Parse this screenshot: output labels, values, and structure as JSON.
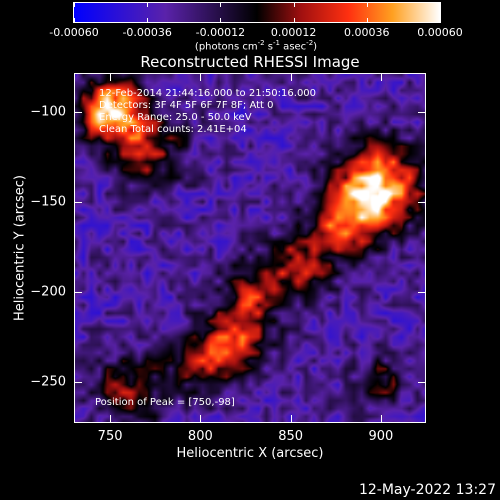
{
  "chart_data": {
    "type": "heatmap",
    "title": "Reconstructed RHESSI Image",
    "xlabel": "Heliocentric X (arcsec)",
    "ylabel": "Heliocentric Y (arcsec)",
    "xlim": [
      730,
      925
    ],
    "ylim": [
      -273,
      -78
    ],
    "x_ticks": [
      750,
      800,
      850,
      900
    ],
    "y_ticks": [
      -100,
      -150,
      -200,
      -250
    ],
    "colorbar": {
      "ticks": [
        "-0.00060",
        "-0.00036",
        "-0.00012",
        "0.00012",
        "0.00036",
        "0.00060"
      ],
      "range": [
        -0.0006,
        0.0006
      ],
      "units_prefix": "(photons cm",
      "units_exp1": "-2",
      "units_mid": " s",
      "units_exp2": "-1",
      "units_mid2": " asec",
      "units_exp3": "-2",
      "units_suffix": ")"
    },
    "annotations": [
      "12-Feb-2014 21:44:16.000 to 21:50:16.000",
      "Detectors: 3F 4F 5F 6F 7F 8F; Att 0",
      "Energy Range: 25.0 - 50.0 keV",
      "Clean    Total counts: 2.41E+04"
    ],
    "peak_label": "Position of Peak = [750,-98]",
    "peak": {
      "x": 750,
      "y": -98
    },
    "sources": [
      {
        "x": 750,
        "y": -98,
        "sigma": 12,
        "amp": 1.0
      },
      {
        "x": 770,
        "y": -120,
        "sigma": 14,
        "amp": 0.55
      },
      {
        "x": 900,
        "y": -140,
        "sigma": 16,
        "amp": 0.95
      },
      {
        "x": 880,
        "y": -160,
        "sigma": 14,
        "amp": 0.7
      },
      {
        "x": 855,
        "y": -185,
        "sigma": 12,
        "amp": 0.55
      },
      {
        "x": 830,
        "y": -200,
        "sigma": 12,
        "amp": 0.5
      },
      {
        "x": 820,
        "y": -225,
        "sigma": 12,
        "amp": 0.6
      },
      {
        "x": 800,
        "y": -240,
        "sigma": 12,
        "amp": 0.55
      },
      {
        "x": 760,
        "y": -255,
        "sigma": 14,
        "amp": 0.45
      },
      {
        "x": 900,
        "y": -250,
        "sigma": 10,
        "amp": 0.4
      }
    ]
  },
  "footer": {
    "timestamp": "12-May-2022 13:27"
  }
}
